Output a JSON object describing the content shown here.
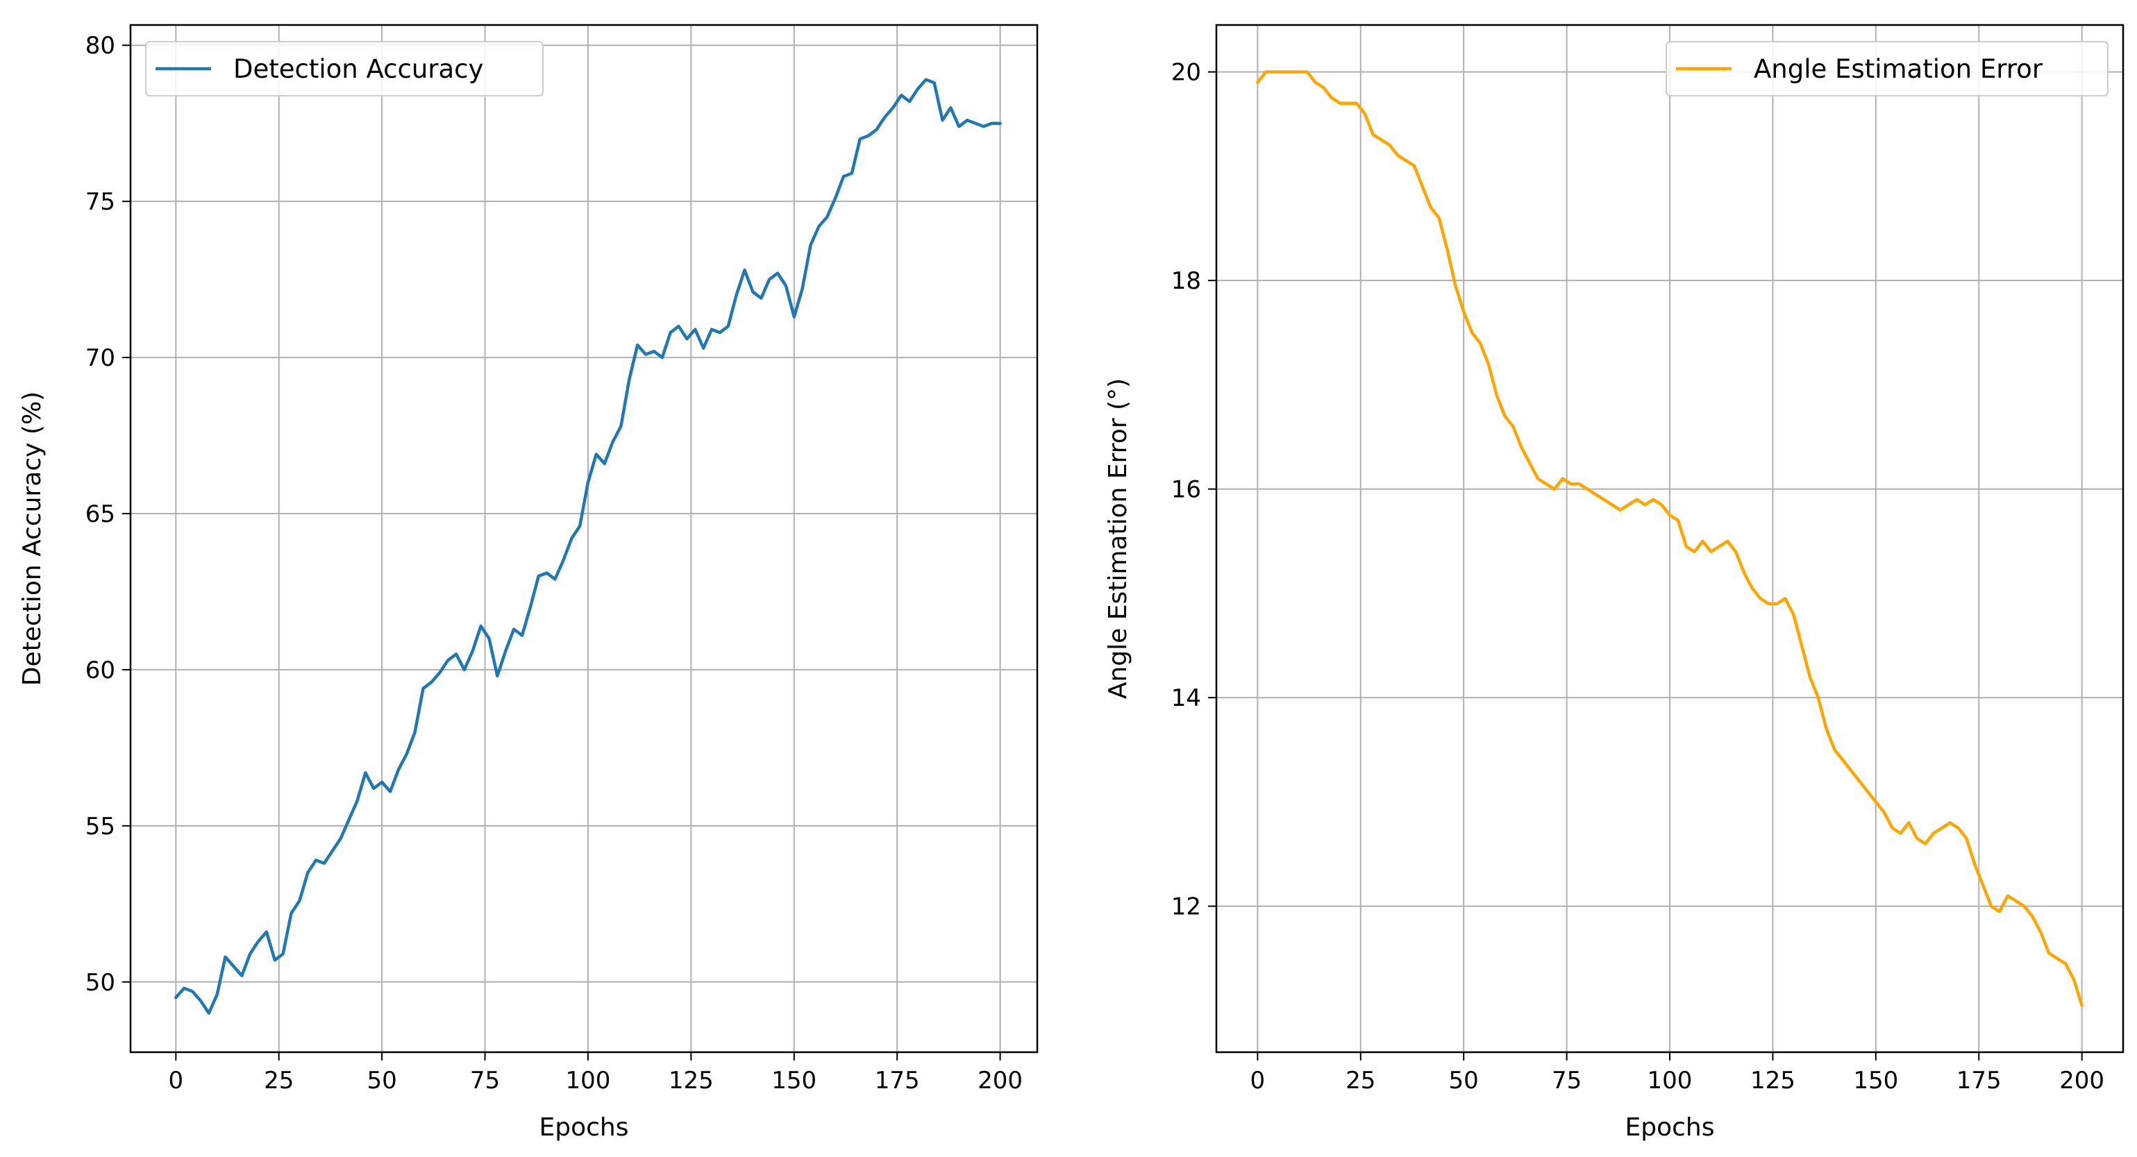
{
  "chart_data": [
    {
      "type": "line",
      "xlabel": "Epochs",
      "ylabel": "Detection Accuracy (%)",
      "xlim": [
        -11,
        209
      ],
      "ylim": [
        47.75,
        80.65
      ],
      "xticks": [
        0,
        25,
        50,
        75,
        100,
        125,
        150,
        175,
        200
      ],
      "yticks": [
        50,
        55,
        60,
        65,
        70,
        75,
        80
      ],
      "grid": true,
      "legend": "top-left",
      "series": [
        {
          "name": "Detection Accuracy",
          "color": "#1f77b4",
          "x": [
            0,
            2,
            4,
            6,
            8,
            10,
            12,
            14,
            16,
            18,
            20,
            22,
            24,
            26,
            28,
            30,
            32,
            34,
            36,
            38,
            40,
            42,
            44,
            46,
            48,
            50,
            52,
            54,
            56,
            58,
            60,
            62,
            64,
            66,
            68,
            70,
            72,
            74,
            76,
            78,
            80,
            82,
            84,
            86,
            88,
            90,
            92,
            94,
            96,
            98,
            100,
            102,
            104,
            106,
            108,
            110,
            112,
            114,
            116,
            118,
            120,
            122,
            124,
            126,
            128,
            130,
            132,
            134,
            136,
            138,
            140,
            142,
            144,
            146,
            148,
            150,
            152,
            154,
            156,
            158,
            160,
            162,
            164,
            166,
            168,
            170,
            172,
            174,
            176,
            178,
            180,
            182,
            184,
            186,
            188,
            190,
            192,
            194,
            196,
            198,
            200
          ],
          "values": [
            49.5,
            49.8,
            49.7,
            49.4,
            49.0,
            49.6,
            50.8,
            50.5,
            50.2,
            50.9,
            51.3,
            51.6,
            50.7,
            50.9,
            52.2,
            52.6,
            53.5,
            53.9,
            53.8,
            54.2,
            54.6,
            55.2,
            55.8,
            56.7,
            56.2,
            56.4,
            56.1,
            56.8,
            57.3,
            58.0,
            59.4,
            59.6,
            59.9,
            60.3,
            60.5,
            60.0,
            60.6,
            61.4,
            61.0,
            59.8,
            60.6,
            61.3,
            61.1,
            62.0,
            63.0,
            63.1,
            62.9,
            63.5,
            64.2,
            64.6,
            66.0,
            66.9,
            66.6,
            67.3,
            67.8,
            69.3,
            70.4,
            70.1,
            70.2,
            70.0,
            70.8,
            71.0,
            70.6,
            70.9,
            70.3,
            70.9,
            70.8,
            71.0,
            72.0,
            72.8,
            72.1,
            71.9,
            72.5,
            72.7,
            72.3,
            71.3,
            72.2,
            73.6,
            74.2,
            74.5,
            75.1,
            75.8,
            75.9,
            77.0,
            77.1,
            77.3,
            77.7,
            78.0,
            78.4,
            78.2,
            78.6,
            78.9,
            78.8,
            77.6,
            78.0,
            77.4,
            77.6,
            77.5,
            77.4,
            77.5,
            77.5
          ]
        }
      ]
    },
    {
      "type": "line",
      "xlabel": "Epochs",
      "ylabel": "Angle Estimation Error (°)",
      "xlim": [
        -10,
        210
      ],
      "ylim": [
        10.6,
        20.45
      ],
      "xticks": [
        0,
        25,
        50,
        75,
        100,
        125,
        150,
        175,
        200
      ],
      "yticks": [
        12,
        14,
        16,
        18,
        20
      ],
      "grid": true,
      "legend": "top-right",
      "series": [
        {
          "name": "Angle Estimation Error",
          "color": "#ffa500",
          "x": [
            0,
            2,
            4,
            6,
            8,
            10,
            12,
            14,
            16,
            18,
            20,
            22,
            24,
            26,
            28,
            30,
            32,
            34,
            36,
            38,
            40,
            42,
            44,
            46,
            48,
            50,
            52,
            54,
            56,
            58,
            60,
            62,
            64,
            66,
            68,
            70,
            72,
            74,
            76,
            78,
            80,
            82,
            84,
            86,
            88,
            90,
            92,
            94,
            96,
            98,
            100,
            102,
            104,
            106,
            108,
            110,
            112,
            114,
            116,
            118,
            120,
            122,
            124,
            126,
            128,
            130,
            132,
            134,
            136,
            138,
            140,
            142,
            144,
            146,
            148,
            150,
            152,
            154,
            156,
            158,
            160,
            162,
            164,
            166,
            168,
            170,
            172,
            174,
            176,
            178,
            180,
            182,
            184,
            186,
            188,
            190,
            192,
            194,
            196,
            198,
            200
          ],
          "values": [
            19.9,
            20.0,
            20.0,
            20.0,
            20.0,
            20.0,
            20.0,
            19.9,
            19.85,
            19.75,
            19.7,
            19.7,
            19.7,
            19.6,
            19.4,
            19.35,
            19.3,
            19.2,
            19.15,
            19.1,
            18.9,
            18.7,
            18.6,
            18.3,
            17.95,
            17.7,
            17.5,
            17.4,
            17.2,
            16.9,
            16.7,
            16.6,
            16.4,
            16.25,
            16.1,
            16.05,
            16.0,
            16.1,
            16.05,
            16.05,
            16.0,
            15.95,
            15.9,
            15.85,
            15.8,
            15.85,
            15.9,
            15.85,
            15.9,
            15.85,
            15.75,
            15.7,
            15.45,
            15.4,
            15.5,
            15.4,
            15.45,
            15.5,
            15.4,
            15.2,
            15.05,
            14.95,
            14.9,
            14.9,
            14.95,
            14.8,
            14.5,
            14.2,
            14.0,
            13.7,
            13.5,
            13.4,
            13.3,
            13.2,
            13.1,
            13.0,
            12.9,
            12.75,
            12.7,
            12.8,
            12.65,
            12.6,
            12.7,
            12.75,
            12.8,
            12.75,
            12.65,
            12.4,
            12.2,
            12.0,
            11.95,
            12.1,
            12.05,
            12.0,
            11.9,
            11.75,
            11.55,
            11.5,
            11.45,
            11.3,
            11.05
          ]
        }
      ]
    }
  ]
}
